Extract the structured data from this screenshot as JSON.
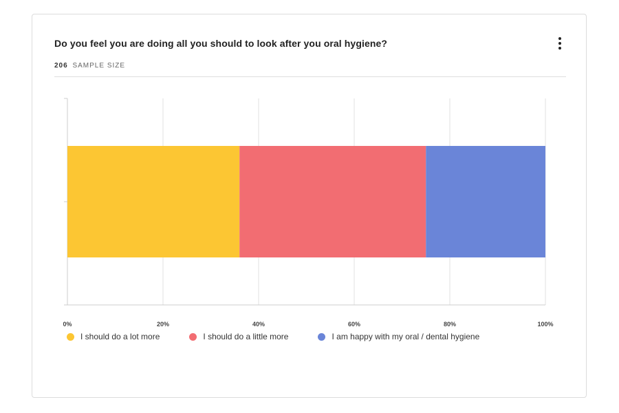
{
  "card": {
    "title": "Do you feel you are doing all you should to look after you oral hygiene?",
    "sample_size_value": "206",
    "sample_size_label": "SAMPLE SIZE",
    "menu_icon": "more-vertical-icon"
  },
  "colors": {
    "a_lot_more": "#fcc633",
    "a_little_more": "#f26d72",
    "happy": "#6a85d8"
  },
  "chart_data": {
    "type": "bar",
    "orientation": "horizontal",
    "stacked": true,
    "title": "Do you feel you are doing all you should to look after you oral hygiene?",
    "xlim": [
      0,
      100
    ],
    "x_ticks": [
      "0%",
      "20%",
      "40%",
      "60%",
      "80%",
      "100%"
    ],
    "x_tick_values": [
      0,
      20,
      40,
      60,
      80,
      100
    ],
    "grid": true,
    "legend_position": "bottom",
    "categories": [
      ""
    ],
    "series": [
      {
        "name": "I should do a lot more",
        "values": [
          36
        ],
        "color": "#fcc633"
      },
      {
        "name": "I should do a little more",
        "values": [
          39
        ],
        "color": "#f26d72"
      },
      {
        "name": "I am happy with my oral / dental hygiene",
        "values": [
          25
        ],
        "color": "#6a85d8"
      }
    ]
  }
}
